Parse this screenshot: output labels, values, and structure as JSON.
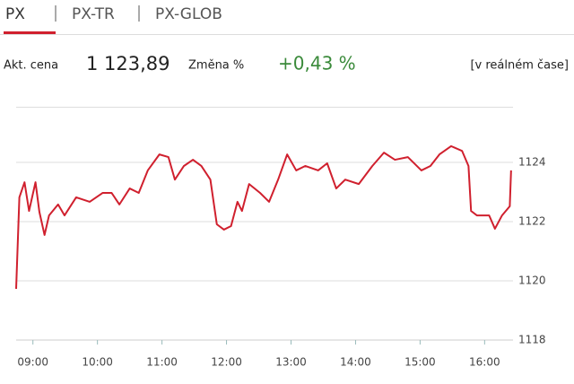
{
  "tabs": [
    "PX",
    "PX-TR",
    "PX-GLOB"
  ],
  "quote": {
    "price_label": "Akt. cena",
    "price": "1 123,89",
    "change_label": "Změna %",
    "change": "+0,43 %",
    "realtime": "[v reálném čase]"
  },
  "chart_data": {
    "type": "line",
    "color": "#d0202e",
    "x": [
      8.74,
      8.79,
      8.87,
      8.94,
      9.04,
      9.1,
      9.18,
      9.25,
      9.39,
      9.49,
      9.67,
      9.88,
      10.08,
      10.22,
      10.34,
      10.5,
      10.64,
      10.78,
      10.96,
      11.1,
      11.2,
      11.34,
      11.48,
      11.61,
      11.75,
      11.85,
      11.96,
      12.07,
      12.17,
      12.24,
      12.35,
      12.52,
      12.66,
      12.8,
      12.94,
      13.08,
      13.22,
      13.42,
      13.56,
      13.7,
      13.84,
      14.05,
      14.26,
      14.44,
      14.61,
      14.81,
      15.02,
      15.16,
      15.3,
      15.48,
      15.65,
      15.75,
      15.79,
      15.88,
      16.07,
      16.16,
      16.27,
      16.39,
      16.41
    ],
    "values": [
      1119.73,
      1122.82,
      1123.33,
      1122.36,
      1123.33,
      1122.33,
      1121.55,
      1122.21,
      1122.58,
      1122.21,
      1122.82,
      1122.67,
      1122.97,
      1122.97,
      1122.58,
      1123.12,
      1122.97,
      1123.73,
      1124.27,
      1124.18,
      1123.42,
      1123.88,
      1124.09,
      1123.88,
      1123.42,
      1121.91,
      1121.73,
      1121.85,
      1122.67,
      1122.36,
      1123.27,
      1122.97,
      1122.67,
      1123.42,
      1124.27,
      1123.73,
      1123.88,
      1123.73,
      1123.97,
      1123.12,
      1123.42,
      1123.27,
      1123.88,
      1124.33,
      1124.09,
      1124.18,
      1123.73,
      1123.88,
      1124.27,
      1124.55,
      1124.39,
      1123.88,
      1122.36,
      1122.21,
      1122.21,
      1121.76,
      1122.21,
      1122.52,
      1123.73
    ],
    "xlim": [
      8.74,
      16.44
    ],
    "xticks": [
      {
        "value": 9,
        "label": "09:00"
      },
      {
        "value": 10,
        "label": "10:00"
      },
      {
        "value": 11,
        "label": "11:00"
      },
      {
        "value": 12,
        "label": "12:00"
      },
      {
        "value": 13,
        "label": "13:00"
      },
      {
        "value": 14,
        "label": "14:00"
      },
      {
        "value": 15,
        "label": "15:00"
      },
      {
        "value": 16,
        "label": "16:00"
      }
    ],
    "ylim": [
      1118,
      1125.88
    ],
    "yticks": [
      1118,
      1120,
      1122,
      1124
    ],
    "grid": true
  }
}
